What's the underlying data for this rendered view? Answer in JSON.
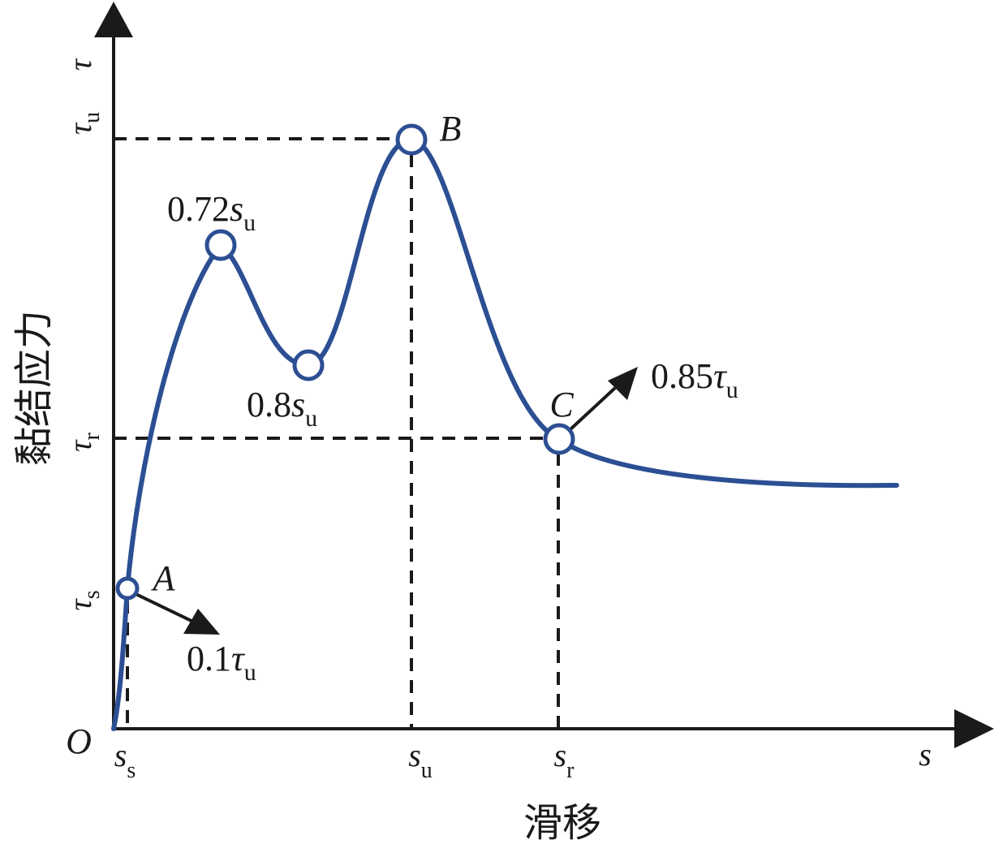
{
  "axes": {
    "x_letter": "s",
    "y_letter": "τ",
    "origin": "O",
    "x_title": "滑移",
    "y_title": "黏结应力"
  },
  "x_ticks": [
    {
      "base": "s",
      "sub": "s"
    },
    {
      "base": "s",
      "sub": "u"
    },
    {
      "base": "s",
      "sub": "r"
    }
  ],
  "y_ticks": [
    {
      "base": "τ",
      "sub": "u"
    },
    {
      "base": "τ",
      "sub": "r"
    },
    {
      "base": "τ",
      "sub": "s"
    }
  ],
  "points": [
    {
      "name": "A"
    },
    {
      "name": "B"
    },
    {
      "name": "C"
    }
  ],
  "annotations": {
    "peak1": {
      "value": "0.72",
      "base": "s",
      "sub": "u"
    },
    "valley": {
      "value": "0.8",
      "base": "s",
      "sub": "u"
    },
    "point_a": {
      "value": "0.1",
      "base": "τ",
      "sub": "u"
    },
    "point_c": {
      "value": "0.85",
      "base": "τ",
      "sub": "u"
    }
  },
  "colors": {
    "curve": "#2c4f93",
    "axis": "#1a1a1a"
  }
}
